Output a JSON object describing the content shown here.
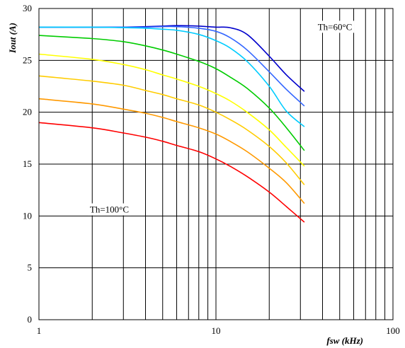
{
  "chart_data": {
    "type": "line",
    "xscale": "log",
    "xlim": [
      1,
      100
    ],
    "ylim": [
      0,
      30
    ],
    "xlabel": "fsw (kHz)",
    "ylabel": "Iout (A)",
    "xticks": [
      "1",
      "10",
      "100"
    ],
    "yticks": [
      "0",
      "5",
      "10",
      "15",
      "20",
      "25",
      "30"
    ],
    "grid": true,
    "annotations": [
      {
        "text": "Th=60°C",
        "x": 47,
        "y": 28.2
      },
      {
        "text": "Th=100°C",
        "x": 2.5,
        "y": 10.6
      }
    ],
    "x": [
      1,
      2,
      3,
      4,
      5,
      6,
      8,
      10,
      12,
      15,
      20,
      25,
      31.6
    ],
    "series": [
      {
        "color": "#0000cc",
        "values": [
          28.2,
          28.2,
          28.2,
          28.25,
          28.3,
          28.35,
          28.3,
          28.2,
          28.15,
          27.5,
          25.4,
          23.6,
          22.0
        ]
      },
      {
        "color": "#3366ff",
        "values": [
          28.2,
          28.2,
          28.2,
          28.2,
          28.25,
          28.25,
          28.1,
          27.8,
          27.2,
          26.0,
          23.9,
          22.2,
          20.6
        ]
      },
      {
        "color": "#00ccff",
        "values": [
          28.2,
          28.2,
          28.15,
          28.1,
          28.0,
          27.9,
          27.5,
          26.9,
          26.2,
          24.9,
          22.5,
          20.1,
          18.6
        ]
      },
      {
        "color": "#00cc00",
        "values": [
          27.4,
          27.1,
          26.8,
          26.4,
          26.0,
          25.6,
          24.9,
          24.2,
          23.4,
          22.3,
          20.4,
          18.5,
          16.3
        ]
      },
      {
        "color": "#ffff00",
        "values": [
          25.6,
          25.1,
          24.6,
          24.1,
          23.6,
          23.2,
          22.5,
          21.8,
          21.1,
          20.0,
          18.3,
          16.6,
          14.8
        ]
      },
      {
        "color": "#ffcc00",
        "values": [
          23.5,
          23.0,
          22.6,
          22.1,
          21.7,
          21.3,
          20.7,
          20.0,
          19.3,
          18.3,
          16.7,
          15.1,
          13.0
        ]
      },
      {
        "color": "#ff9900",
        "values": [
          21.3,
          20.8,
          20.3,
          19.9,
          19.5,
          19.1,
          18.5,
          17.9,
          17.2,
          16.2,
          14.6,
          13.2,
          11.2
        ]
      },
      {
        "color": "#ff0000",
        "values": [
          19.0,
          18.5,
          18.0,
          17.6,
          17.2,
          16.8,
          16.2,
          15.5,
          14.8,
          13.8,
          12.3,
          10.9,
          9.4
        ]
      }
    ]
  }
}
